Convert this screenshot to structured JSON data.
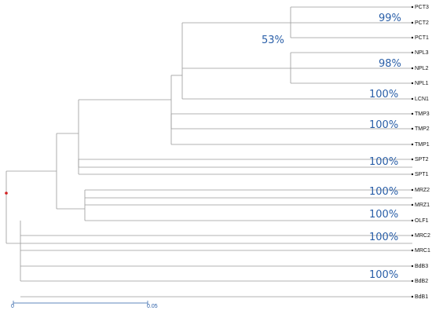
{
  "colors": {
    "branch": "#9a9a9a",
    "support": "#2a5fa8",
    "scale": "#2a5fa8",
    "root": "#d21f1f",
    "leaf_text": "#111111"
  },
  "leaves": [
    "PCT3",
    "PCT2",
    "PCT1",
    "NPL3",
    "NPL2",
    "NPL1",
    "LCN1",
    "TMP3",
    "TMP2",
    "TMP1",
    "SPT2",
    "SPT1",
    "MRZ2",
    "MRZ1",
    "OLF1",
    "MRC2",
    "MRC1",
    "BdB3",
    "BdB2",
    "BdB1"
  ],
  "support_values": {
    "pct_clade": "99%",
    "npl_pair": "98%",
    "npl_lcn_clade": "53%",
    "npl_group": "100%",
    "tmp_group": "100%",
    "spt_group": "100%",
    "mrz_group": "100%",
    "olf_group": "100%",
    "mrc_group": "100%",
    "bdb_group": "100%"
  },
  "scale_bar": {
    "start_label": "0",
    "end_label": "0.05"
  }
}
